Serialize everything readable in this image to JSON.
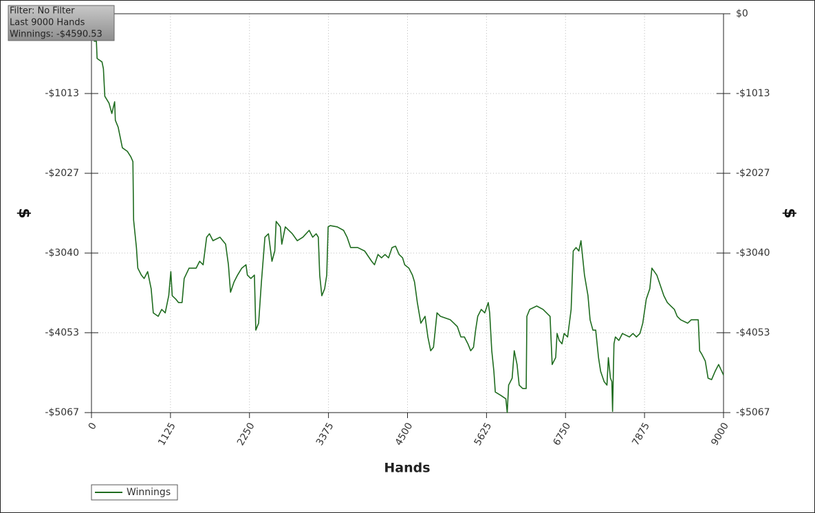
{
  "chart_data": {
    "type": "line",
    "annotations": [
      "Filter: No Filter",
      "Last 9000 Hands",
      "Winnings: -$4590.53"
    ],
    "x_label": "Hands",
    "y_label": "$",
    "grid": true,
    "legend": "bottom-left",
    "xlim": [
      0,
      9000
    ],
    "xticks": [
      0,
      1125,
      2250,
      3375,
      4500,
      5625,
      6750,
      7875,
      9000
    ],
    "ylim": [
      -5067,
      0
    ],
    "yticks": [
      {
        "value": 0,
        "label": "$0"
      },
      {
        "value": -1013,
        "label": "-$1013"
      },
      {
        "value": -2027,
        "label": "-$2027"
      },
      {
        "value": -3040,
        "label": "-$3040"
      },
      {
        "value": -4053,
        "label": "-$4053"
      },
      {
        "value": -5067,
        "label": "-$5067"
      }
    ],
    "series": [
      {
        "name": "Winnings",
        "color": "#1e6b1e",
        "x": [
          0,
          40,
          70,
          80,
          150,
          170,
          190,
          250,
          290,
          330,
          340,
          380,
          410,
          440,
          510,
          560,
          590,
          600,
          640,
          660,
          710,
          750,
          800,
          850,
          880,
          950,
          1000,
          1050,
          1100,
          1130,
          1150,
          1200,
          1240,
          1290,
          1320,
          1390,
          1490,
          1540,
          1590,
          1640,
          1680,
          1730,
          1830,
          1910,
          1950,
          1980,
          2030,
          2080,
          2140,
          2200,
          2220,
          2270,
          2320,
          2340,
          2380,
          2420,
          2470,
          2520,
          2570,
          2610,
          2630,
          2690,
          2710,
          2760,
          2860,
          2930,
          3010,
          3100,
          3150,
          3200,
          3230,
          3250,
          3280,
          3320,
          3350,
          3370,
          3400,
          3500,
          3590,
          3640,
          3690,
          3790,
          3890,
          3990,
          4030,
          4080,
          4130,
          4180,
          4230,
          4280,
          4330,
          4380,
          4430,
          4460,
          4520,
          4570,
          4600,
          4640,
          4690,
          4750,
          4790,
          4830,
          4870,
          4920,
          4970,
          5110,
          5160,
          5210,
          5260,
          5310,
          5360,
          5400,
          5440,
          5470,
          5500,
          5550,
          5600,
          5650,
          5670,
          5700,
          5730,
          5750,
          5830,
          5900,
          5920,
          5940,
          5990,
          6020,
          6060,
          6090,
          6140,
          6190,
          6200,
          6240,
          6340,
          6430,
          6530,
          6560,
          6610,
          6630,
          6660,
          6700,
          6730,
          6780,
          6830,
          6860,
          6900,
          6940,
          6970,
          7020,
          7070,
          7100,
          7140,
          7180,
          7220,
          7250,
          7300,
          7340,
          7360,
          7390,
          7410,
          7420,
          7440,
          7460,
          7510,
          7560,
          7660,
          7710,
          7760,
          7810,
          7850,
          7900,
          7950,
          7980,
          8050,
          8100,
          8150,
          8200,
          8250,
          8300,
          8340,
          8390,
          8490,
          8540,
          8640,
          8660,
          8690,
          8740,
          8780,
          8830,
          8880,
          8930,
          9000
        ],
        "values": [
          0,
          -349,
          -349,
          -568,
          -612,
          -699,
          -1048,
          -1136,
          -1267,
          -1118,
          -1354,
          -1441,
          -1572,
          -1703,
          -1747,
          -1817,
          -1878,
          -2621,
          -2970,
          -3232,
          -3320,
          -3363,
          -3276,
          -3494,
          -3800,
          -3844,
          -3756,
          -3800,
          -3582,
          -3276,
          -3582,
          -3625,
          -3669,
          -3669,
          -3363,
          -3232,
          -3232,
          -3145,
          -3189,
          -2839,
          -2795,
          -2883,
          -2839,
          -2927,
          -3189,
          -3538,
          -3407,
          -3320,
          -3232,
          -3189,
          -3320,
          -3363,
          -3320,
          -4019,
          -3931,
          -3407,
          -2839,
          -2795,
          -3145,
          -3014,
          -2638,
          -2708,
          -2927,
          -2708,
          -2795,
          -2883,
          -2839,
          -2752,
          -2839,
          -2795,
          -2839,
          -3320,
          -3582,
          -3494,
          -3320,
          -2708,
          -2691,
          -2708,
          -2752,
          -2839,
          -2970,
          -2970,
          -3014,
          -3145,
          -3189,
          -3058,
          -3101,
          -3058,
          -3101,
          -2970,
          -2953,
          -3058,
          -3101,
          -3189,
          -3232,
          -3320,
          -3407,
          -3669,
          -3931,
          -3844,
          -4106,
          -4281,
          -4237,
          -3800,
          -3844,
          -3888,
          -3931,
          -3975,
          -4106,
          -4106,
          -4193,
          -4281,
          -4237,
          -4019,
          -3844,
          -3756,
          -3800,
          -3669,
          -3800,
          -4281,
          -4543,
          -4805,
          -4849,
          -4892,
          -5067,
          -4718,
          -4630,
          -4281,
          -4456,
          -4718,
          -4761,
          -4761,
          -3844,
          -3756,
          -3713,
          -3756,
          -3844,
          -4456,
          -4368,
          -4062,
          -4150,
          -4193,
          -4062,
          -4106,
          -3756,
          -3014,
          -2970,
          -3014,
          -2883,
          -3320,
          -3582,
          -3888,
          -4019,
          -4019,
          -4368,
          -4543,
          -4674,
          -4718,
          -4368,
          -4630,
          -4674,
          -5050,
          -4193,
          -4106,
          -4150,
          -4062,
          -4106,
          -4062,
          -4106,
          -4062,
          -3931,
          -3625,
          -3494,
          -3232,
          -3320,
          -3451,
          -3582,
          -3669,
          -3713,
          -3756,
          -3844,
          -3888,
          -3931,
          -3888,
          -3888,
          -4281,
          -4324,
          -4412,
          -4630,
          -4648,
          -4543,
          -4456,
          -4590.53
        ]
      }
    ]
  }
}
